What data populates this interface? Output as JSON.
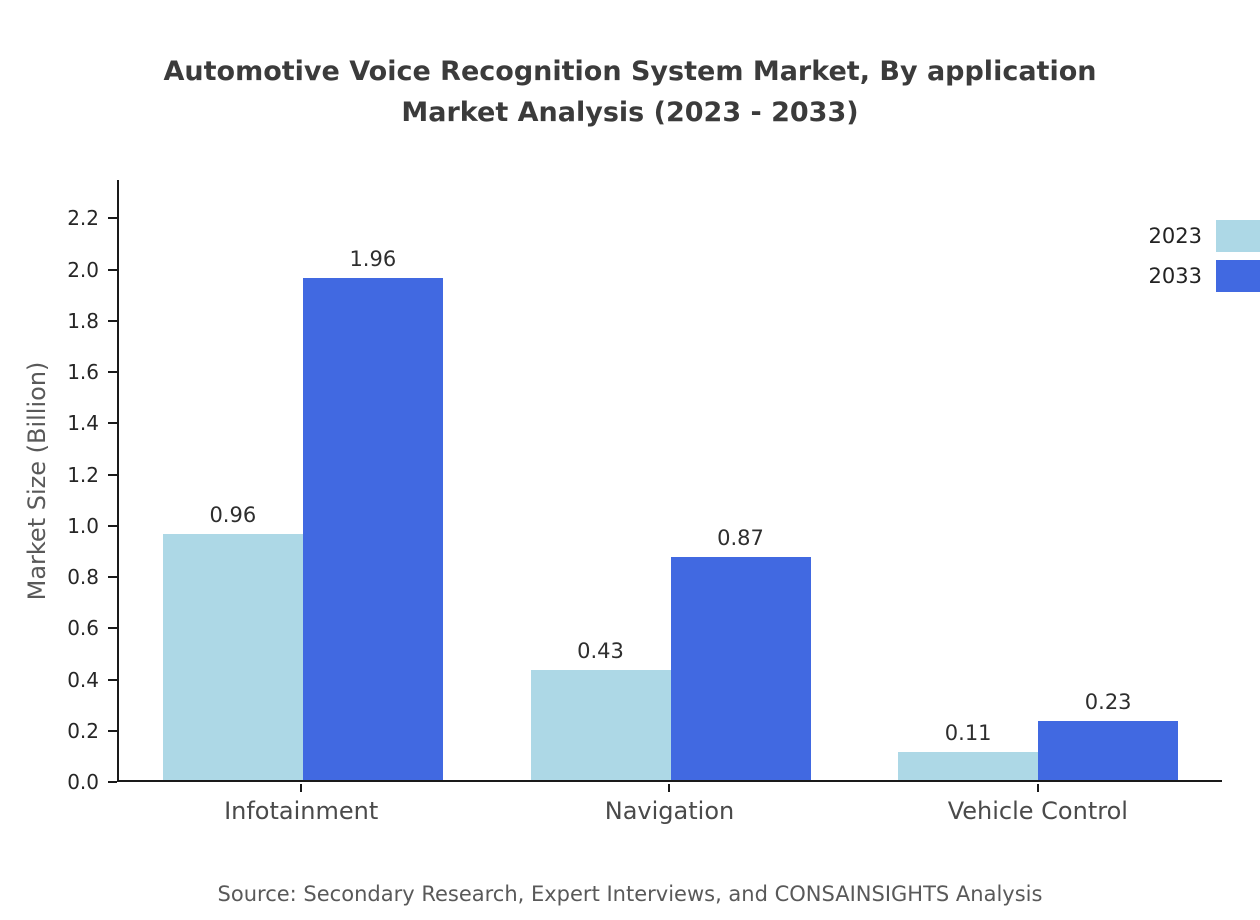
{
  "title": {
    "line1": "Automotive Voice Recognition System Market, By application",
    "line2": "Market Analysis (2023 - 2033)"
  },
  "source": "Source: Secondary Research, Expert Interviews, and CONSAINSIGHTS Analysis",
  "chart_data": {
    "type": "bar",
    "title": "Automotive Voice Recognition System Market, By application Market Analysis (2023 - 2033)",
    "categories": [
      "Infotainment",
      "Navigation",
      "Vehicle Control"
    ],
    "series": [
      {
        "name": "2023",
        "color": "#ADD8E6",
        "values": [
          0.96,
          0.43,
          0.11
        ]
      },
      {
        "name": "2033",
        "color": "#4169E1",
        "values": [
          1.96,
          0.87,
          0.23
        ]
      }
    ],
    "xlabel": "",
    "ylabel": "Market Size (Billion)",
    "ylim": [
      0,
      2.35
    ],
    "yticks": [
      0.0,
      0.2,
      0.4,
      0.6,
      0.8,
      1.0,
      1.2,
      1.4,
      1.6,
      1.8,
      2.0,
      2.2
    ],
    "grid": false,
    "legend_position": "upper right"
  }
}
